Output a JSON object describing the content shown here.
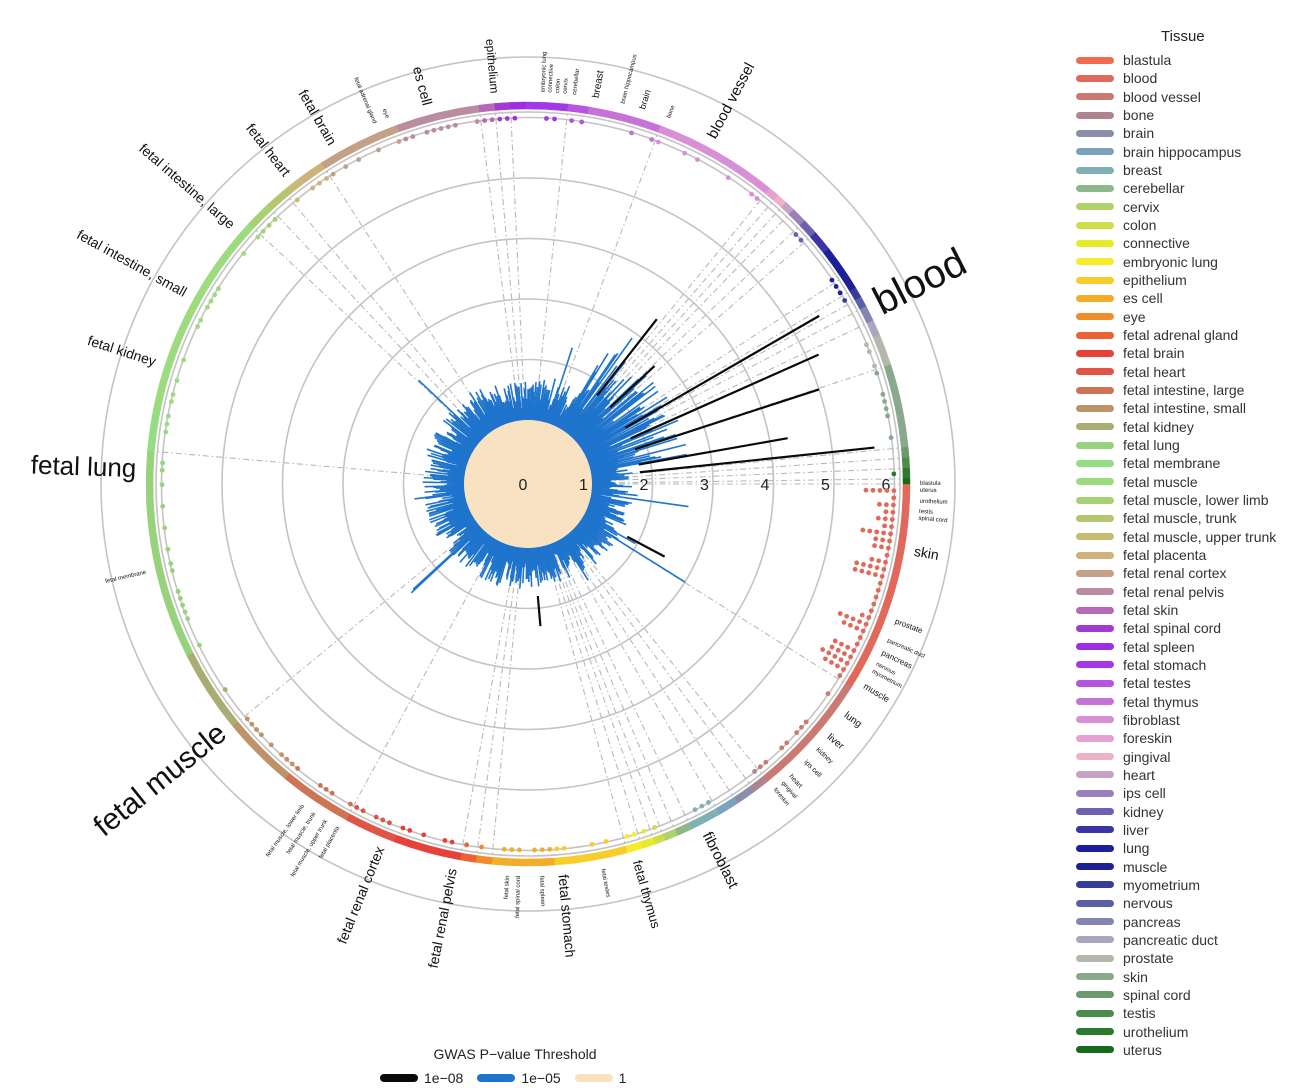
{
  "chart_data": {
    "type": "circular bar",
    "radial_ticks": [
      "0",
      "1",
      "2",
      "3",
      "4",
      "5",
      "6"
    ],
    "radial_range": [
      0,
      6
    ],
    "tissues": [
      {
        "name": "blastula",
        "color": "#f36b4f"
      },
      {
        "name": "blood",
        "color": "#e0695b"
      },
      {
        "name": "blood vessel",
        "color": "#c97b73"
      },
      {
        "name": "bone",
        "color": "#b0848e"
      },
      {
        "name": "brain",
        "color": "#8b8ea8"
      },
      {
        "name": "brain hippocampus",
        "color": "#7ca2bd"
      },
      {
        "name": "breast",
        "color": "#7fb0b3"
      },
      {
        "name": "cerebellar",
        "color": "#8db88c"
      },
      {
        "name": "cervix",
        "color": "#afd26b"
      },
      {
        "name": "colon",
        "color": "#cfdd48"
      },
      {
        "name": "connective",
        "color": "#e6ea2a"
      },
      {
        "name": "embryonic lung",
        "color": "#f7ec2b"
      },
      {
        "name": "epithelium",
        "color": "#f6cd2a"
      },
      {
        "name": "es cell",
        "color": "#f3ad29"
      },
      {
        "name": "eye",
        "color": "#ef8d2a"
      },
      {
        "name": "fetal adrenal gland",
        "color": "#ec6234"
      },
      {
        "name": "fetal brain",
        "color": "#e6423a"
      },
      {
        "name": "fetal heart",
        "color": "#df5447"
      },
      {
        "name": "fetal intestine, large",
        "color": "#cf7355"
      },
      {
        "name": "fetal intestine, small",
        "color": "#bf9368"
      },
      {
        "name": "fetal kidney",
        "color": "#a9ad74"
      },
      {
        "name": "fetal lung",
        "color": "#98d27c"
      },
      {
        "name": "fetal membrane",
        "color": "#93dd84"
      },
      {
        "name": "fetal muscle",
        "color": "#9ddb7f"
      },
      {
        "name": "fetal muscle, lower limb",
        "color": "#a6d275"
      },
      {
        "name": "fetal muscle, trunk",
        "color": "#b4c770"
      },
      {
        "name": "fetal muscle, upper trunk",
        "color": "#c5bc73"
      },
      {
        "name": "fetal placenta",
        "color": "#cfb27a"
      },
      {
        "name": "fetal renal cortex",
        "color": "#c4a087"
      },
      {
        "name": "fetal renal pelvis",
        "color": "#bb8ca0"
      },
      {
        "name": "fetal skin",
        "color": "#b569b6"
      },
      {
        "name": "fetal spinal cord",
        "color": "#a33bd0"
      },
      {
        "name": "fetal spleen",
        "color": "#9c2ee4"
      },
      {
        "name": "fetal stomach",
        "color": "#a238e7"
      },
      {
        "name": "fetal testes",
        "color": "#b654e0"
      },
      {
        "name": "fetal thymus",
        "color": "#c673d7"
      },
      {
        "name": "fibroblast",
        "color": "#d98fd6"
      },
      {
        "name": "foreskin",
        "color": "#e5a1cf"
      },
      {
        "name": "gingival",
        "color": "#edb2c4"
      },
      {
        "name": "heart",
        "color": "#c8a1c6"
      },
      {
        "name": "ips cell",
        "color": "#9a80ba"
      },
      {
        "name": "kidney",
        "color": "#6f5fb2"
      },
      {
        "name": "liver",
        "color": "#3b34a3"
      },
      {
        "name": "lung",
        "color": "#1c1f9a"
      },
      {
        "name": "muscle",
        "color": "#1d2194"
      },
      {
        "name": "myometrium",
        "color": "#363c9a"
      },
      {
        "name": "nervous",
        "color": "#5b5fa7"
      },
      {
        "name": "pancreas",
        "color": "#8585b4"
      },
      {
        "name": "pancreatic duct",
        "color": "#a9a7bf"
      },
      {
        "name": "prostate",
        "color": "#b2b9ac"
      },
      {
        "name": "skin",
        "color": "#8aa88c"
      },
      {
        "name": "spinal cord",
        "color": "#6c9a6e"
      },
      {
        "name": "testis",
        "color": "#4e8c4e"
      },
      {
        "name": "urothelium",
        "color": "#2c7a2d"
      },
      {
        "name": "uterus",
        "color": "#176a1c"
      }
    ],
    "arc_labels": [
      {
        "text": "blood",
        "angle": 63,
        "size": 40
      },
      {
        "text": "blood vessel",
        "angle": 28,
        "size": 15
      },
      {
        "text": "bone",
        "angle": 21,
        "size": 6
      },
      {
        "text": "brain",
        "angle": 17,
        "size": 9
      },
      {
        "text": "brain hippocampus",
        "angle": 14,
        "size": 6
      },
      {
        "text": "breast",
        "angle": 10,
        "size": 10
      },
      {
        "text": "cerebellar",
        "angle": 6.8,
        "size": 6
      },
      {
        "text": "cervix",
        "angle": 5.4,
        "size": 6
      },
      {
        "text": "colon",
        "angle": 4.3,
        "size": 6
      },
      {
        "text": "connective",
        "angle": 3.2,
        "size": 6
      },
      {
        "text": "embryonic lung",
        "angle": 2.2,
        "size": 6
      },
      {
        "text": "epithelium",
        "angle": -5,
        "size": 12
      },
      {
        "text": "es cell",
        "angle": -15,
        "size": 14
      },
      {
        "text": "eye",
        "angle": -21,
        "size": 6
      },
      {
        "text": "fetal adrenal gland",
        "angle": -23,
        "size": 6
      },
      {
        "text": "fetal brain",
        "angle": -30,
        "size": 14
      },
      {
        "text": "fetal heart",
        "angle": -38,
        "size": 14
      },
      {
        "text": "fetal intestine, large",
        "angle": -49,
        "size": 14
      },
      {
        "text": "fetal intestine, small",
        "angle": -61,
        "size": 14
      },
      {
        "text": "fetal kidney",
        "angle": -72,
        "size": 14
      },
      {
        "text": "fetal lung",
        "angle": -88,
        "size": 26
      },
      {
        "text": "fetal membrane",
        "angle": -103,
        "size": 6
      },
      {
        "text": "fetal muscle",
        "angle": -129,
        "size": 30
      },
      {
        "text": "fetal muscle, lower limb",
        "angle": -145,
        "size": 6
      },
      {
        "text": "fetal muscle, trunk",
        "angle": -147,
        "size": 6
      },
      {
        "text": "fetal muscle, upper trunk",
        "angle": -149,
        "size": 6
      },
      {
        "text": "fetal placenta",
        "angle": -151,
        "size": 6
      },
      {
        "text": "fetal renal cortex",
        "angle": -158,
        "size": 14
      },
      {
        "text": "fetal renal pelvis",
        "angle": -169,
        "size": 14
      },
      {
        "text": "fetal skin",
        "angle": -177,
        "size": 6
      },
      {
        "text": "fetal spinal cord",
        "angle": -178.6,
        "size": 6
      },
      {
        "text": "fetal spleen",
        "angle": 178,
        "size": 6
      },
      {
        "text": "fetal stomach",
        "angle": 175,
        "size": 14
      },
      {
        "text": "fetal testes",
        "angle": 169,
        "size": 6
      },
      {
        "text": "fetal thymus",
        "angle": 164,
        "size": 13
      },
      {
        "text": "fibroblast",
        "angle": 153,
        "size": 15
      },
      {
        "text": "foreskin",
        "angle": 141,
        "size": 6
      },
      {
        "text": "gingival",
        "angle": 139.5,
        "size": 6
      },
      {
        "text": "heart",
        "angle": 138,
        "size": 7
      },
      {
        "text": "ips cell",
        "angle": 135,
        "size": 7
      },
      {
        "text": "kidney",
        "angle": 132.5,
        "size": 7
      },
      {
        "text": "liver",
        "angle": 130,
        "size": 10
      },
      {
        "text": "lung",
        "angle": 126,
        "size": 10
      },
      {
        "text": "muscle",
        "angle": 121,
        "size": 9
      },
      {
        "text": "myometrium",
        "angle": 118.5,
        "size": 6
      },
      {
        "text": "nervous",
        "angle": 117.3,
        "size": 6
      },
      {
        "text": "pancreas",
        "angle": 115.5,
        "size": 8
      },
      {
        "text": "pancreatic duct",
        "angle": 113.5,
        "size": 6
      },
      {
        "text": "prostate",
        "angle": 110.5,
        "size": 8
      },
      {
        "text": "skin",
        "angle": 100,
        "size": 14
      },
      {
        "text": "spinal cord",
        "angle": 95,
        "size": 6
      },
      {
        "text": "testis",
        "angle": 94,
        "size": 6
      },
      {
        "text": "urothelium",
        "angle": 92.5,
        "size": 6
      },
      {
        "text": "uterus",
        "angle": 90.9,
        "size": 6
      },
      {
        "text": "blastula",
        "angle": 89.9,
        "size": 6
      }
    ],
    "legend_title": "Tissue",
    "threshold_legend": {
      "title": "GWAS P−value Threshold",
      "items": [
        {
          "label": "1e−08",
          "color": "#0a0a0a"
        },
        {
          "label": "1e−05",
          "color": "#1f74cc"
        },
        {
          "label": "1",
          "color": "#f9e2c2"
        }
      ]
    }
  }
}
